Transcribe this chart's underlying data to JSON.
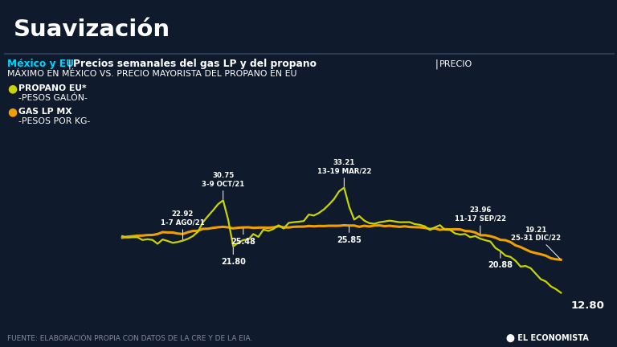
{
  "bg_color": "#0f1b2d",
  "title_accent_color": "#c8d400",
  "title": "Suavización",
  "subtitle_colored": "México y EU",
  "subtitle_pipe1": " | ",
  "subtitle_bold": "Precios semanales del gas LP y del propano",
  "subtitle_pipe2": " | ",
  "subtitle_normal": "PRECIO",
  "subtitle2": "MÁXIMO EN MÉXICO VS. PRECIO MAYORISTA DEL PROPANO EN EU",
  "legend1_dot_color": "#c8d400",
  "legend1_line1": "PROPANO EU*",
  "legend1_line2": "-PESOS GALÓN-",
  "legend2_dot_color": "#f0a000",
  "legend2_line1": "GAS LP MX",
  "legend2_line2": "-PESOS POR KG-",
  "propano_color": "#c8d400",
  "gaslp_color": "#f0a000",
  "source_text": "FUENTE: ELABORACIÓN PROPIA CON DATOS DE LA CRE Y DE LA EIA.",
  "economist_logo": "EL ECONOMISTA",
  "cyan_color": "#00d4ff",
  "white": "#ffffff",
  "gray": "#888899"
}
